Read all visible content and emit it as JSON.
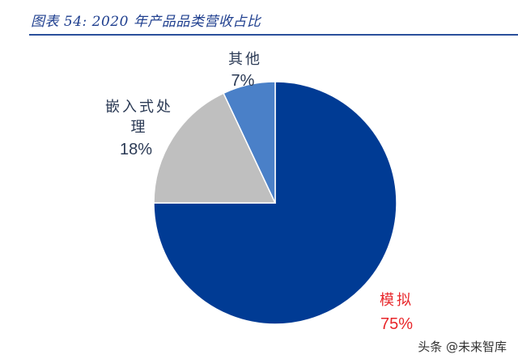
{
  "caption": "图表 54:  2020 年产品品类营收占比",
  "watermark": "头条 @未来智库",
  "chart_data": {
    "type": "pie",
    "title": "",
    "slices": [
      {
        "label": "模拟",
        "value": 75,
        "display": "75%",
        "color": "#003b94",
        "label_color": "#e8262a"
      },
      {
        "label": "嵌入式处理",
        "value": 18,
        "display": "18%",
        "color": "#bfbfbf",
        "label_color": "#2b3a55"
      },
      {
        "label": "其他",
        "value": 7,
        "display": "7%",
        "color": "#4a80c8",
        "label_color": "#2b3a55"
      }
    ],
    "start_angle": "12 o'clock",
    "direction": "clockwise"
  }
}
